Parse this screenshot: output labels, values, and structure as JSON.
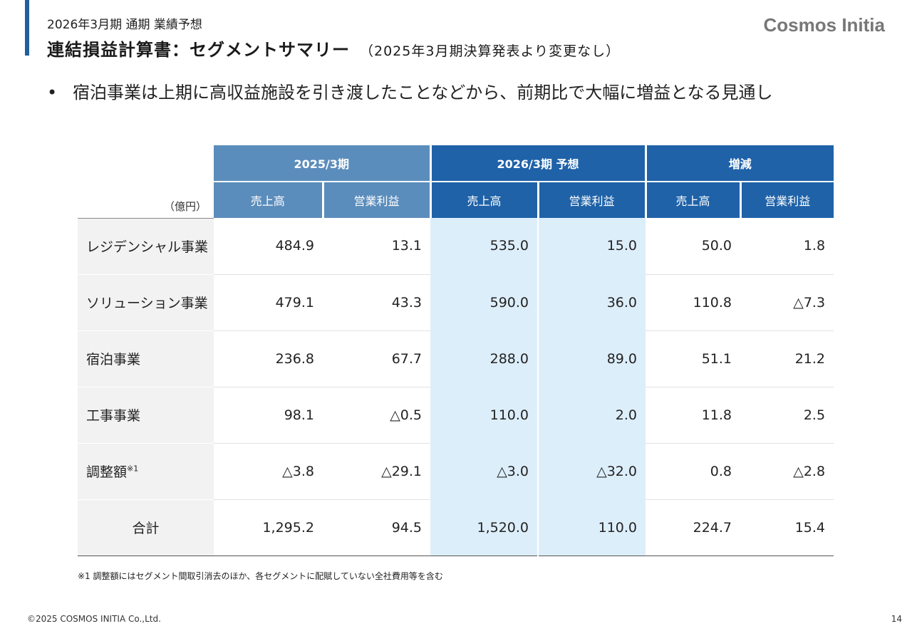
{
  "header": {
    "subtitle": "2026年3月期 通期 業績予想",
    "title": "連結損益計算書：セグメントサマリー",
    "title_note": "（2025年3月期決算発表より変更なし）",
    "logo_text": "Cosmos Initia"
  },
  "bullet": {
    "mark": "•",
    "text": "宿泊事業は上期に高収益施設を引き渡したことなどから、前期比で大幅に増益となる見通し"
  },
  "table": {
    "unit_label": "（億円）",
    "groups": [
      "2025/3期",
      "2026/3期 予想",
      "増減"
    ],
    "subheaders": [
      "売上高",
      "営業利益",
      "売上高",
      "営業利益",
      "売上高",
      "営業利益"
    ],
    "rows": [
      {
        "label": "レジデンシャル事業",
        "note": "",
        "values": [
          "484.9",
          "13.1",
          "535.0",
          "15.0",
          "50.0",
          "1.8"
        ]
      },
      {
        "label": "ソリューション事業",
        "note": "",
        "values": [
          "479.1",
          "43.3",
          "590.0",
          "36.0",
          "110.8",
          "△7.3"
        ]
      },
      {
        "label": "宿泊事業",
        "note": "",
        "values": [
          "236.8",
          "67.7",
          "288.0",
          "89.0",
          "51.1",
          "21.2"
        ]
      },
      {
        "label": "工事事業",
        "note": "",
        "values": [
          "98.1",
          "△0.5",
          "110.0",
          "2.0",
          "11.8",
          "2.5"
        ]
      },
      {
        "label": "調整額",
        "note": "※1",
        "values": [
          "△3.8",
          "△29.1",
          "△3.0",
          "△32.0",
          "0.8",
          "△2.8"
        ]
      }
    ],
    "total": {
      "label": "合計",
      "values": [
        "1,295.2",
        "94.5",
        "1,520.0",
        "110.0",
        "224.7",
        "15.4"
      ]
    }
  },
  "footnote": "※1  調整額にはセグメント間取引消去のほか、各セグメントに配賦していない全社費用等を含む",
  "footer": {
    "copyright": "©2025 COSMOS INITIA Co.,Ltd.",
    "page_number": "14"
  }
}
